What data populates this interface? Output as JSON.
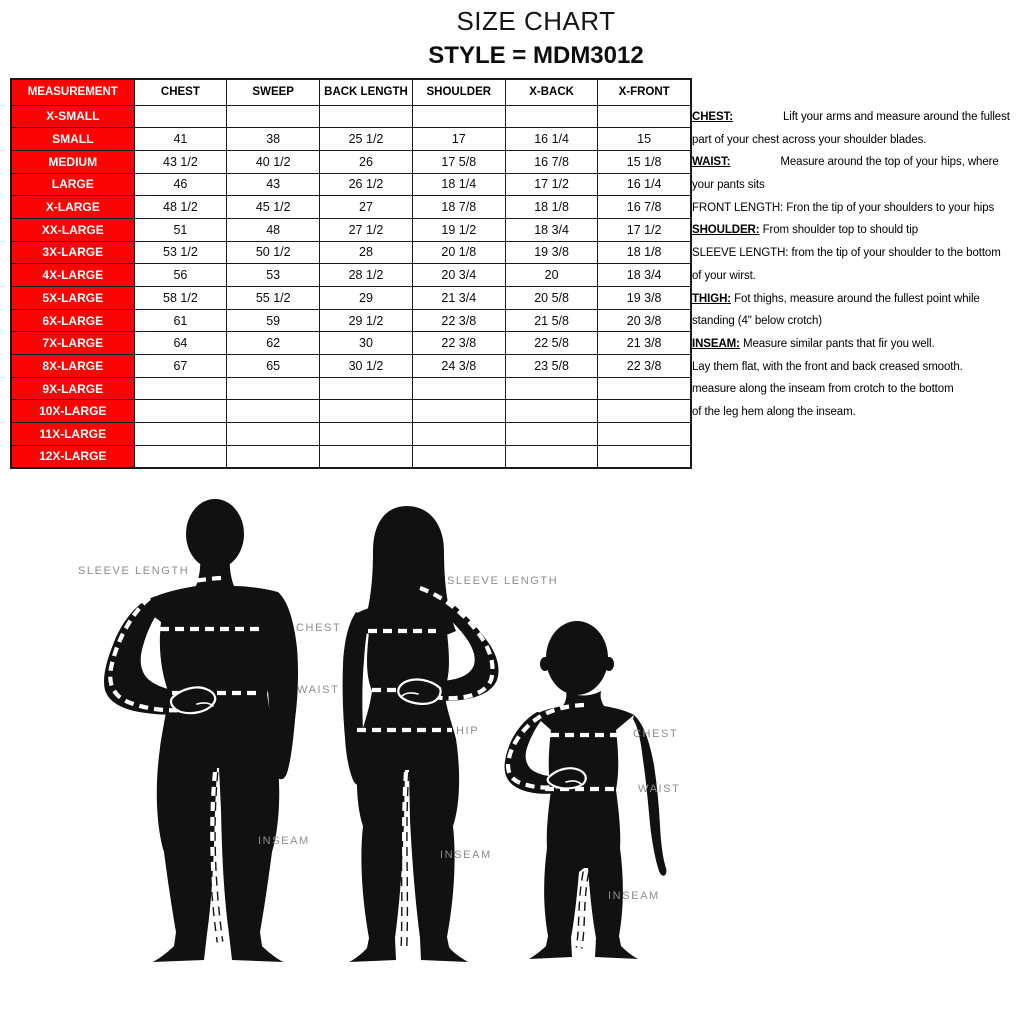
{
  "header": {
    "title": "SIZE CHART",
    "style_line": "STYLE = MDM3012"
  },
  "table": {
    "columns": [
      "MEASUREMENT",
      "CHEST",
      "SWEEP",
      "BACK LENGTH",
      "SHOULDER",
      "X-BACK",
      "X-FRONT"
    ],
    "rows": [
      {
        "label": "X-SMALL",
        "values": [
          "",
          "",
          "",
          "",
          "",
          ""
        ]
      },
      {
        "label": "SMALL",
        "values": [
          "41",
          "38",
          "25 1/2",
          "17",
          "16 1/4",
          "15"
        ]
      },
      {
        "label": "MEDIUM",
        "values": [
          "43 1/2",
          "40 1/2",
          "26",
          "17 5/8",
          "16 7/8",
          "15 1/8"
        ]
      },
      {
        "label": "LARGE",
        "values": [
          "46",
          "43",
          "26 1/2",
          "18 1/4",
          "17 1/2",
          "16 1/4"
        ]
      },
      {
        "label": "X-LARGE",
        "values": [
          "48 1/2",
          "45 1/2",
          "27",
          "18 7/8",
          "18 1/8",
          "16 7/8"
        ]
      },
      {
        "label": "XX-LARGE",
        "values": [
          "51",
          "48",
          "27 1/2",
          "19 1/2",
          "18 3/4",
          "17 1/2"
        ]
      },
      {
        "label": "3X-LARGE",
        "values": [
          "53 1/2",
          "50 1/2",
          "28",
          "20 1/8",
          "19 3/8",
          "18 1/8"
        ]
      },
      {
        "label": "4X-LARGE",
        "values": [
          "56",
          "53",
          "28 1/2",
          "20 3/4",
          "20",
          "18 3/4"
        ]
      },
      {
        "label": "5X-LARGE",
        "values": [
          "58 1/2",
          "55 1/2",
          "29",
          "21 3/4",
          "20 5/8",
          "19 3/8"
        ]
      },
      {
        "label": "6X-LARGE",
        "values": [
          "61",
          "59",
          "29 1/2",
          "22 3/8",
          "21 5/8",
          "20 3/8"
        ]
      },
      {
        "label": "7X-LARGE",
        "values": [
          "64",
          "62",
          "30",
          "22 3/8",
          "22 5/8",
          "21 3/8"
        ]
      },
      {
        "label": "8X-LARGE",
        "values": [
          "67",
          "65",
          "30 1/2",
          "24 3/8",
          "23 5/8",
          "22 3/8"
        ]
      },
      {
        "label": "9X-LARGE",
        "values": [
          "",
          "",
          "",
          "",
          "",
          ""
        ]
      },
      {
        "label": "10X-LARGE",
        "values": [
          "",
          "",
          "",
          "",
          "",
          ""
        ]
      },
      {
        "label": "11X-LARGE",
        "values": [
          "",
          "",
          "",
          "",
          "",
          ""
        ]
      },
      {
        "label": "12X-LARGE",
        "values": [
          "",
          "",
          "",
          "",
          "",
          ""
        ]
      }
    ]
  },
  "instructions": {
    "lines": [
      {
        "label": "CHEST:",
        "underline": true,
        "tab": true,
        "text": "Lift your arms and measure around the fullest"
      },
      {
        "label": "",
        "underline": false,
        "tab": false,
        "text": "part of your chest across your shoulder blades."
      },
      {
        "label": "WAIST:",
        "underline": true,
        "tab": true,
        "text": "Measure around the top of  your hips, where"
      },
      {
        "label": "",
        "underline": false,
        "tab": false,
        "text": "your pants sits"
      },
      {
        "label": "FRONT LENGTH:",
        "underline": false,
        "tab": false,
        "text": "Fron the tip of your shoulders to your hips"
      },
      {
        "label": "SHOULDER:",
        "underline": true,
        "tab": false,
        "text": "From shoulder top to should tip"
      },
      {
        "label": "SLEEVE LENGTH:",
        "underline": false,
        "tab": false,
        "text": "from the tip of your shoulder to the bottom"
      },
      {
        "label": "",
        "underline": false,
        "tab": false,
        "text": "of your wirst."
      },
      {
        "label": "THIGH:",
        "underline": true,
        "tab": false,
        "text": "Fot thighs, measure around the fullest point while"
      },
      {
        "label": "",
        "underline": false,
        "tab": false,
        "text": "standing (4\" below crotch)"
      },
      {
        "label": "INSEAM:",
        "underline": true,
        "tab": false,
        "text": "Measure similar pants that fir you well."
      },
      {
        "label": "",
        "underline": false,
        "tab": false,
        "text": "Lay them flat, with the front and back creased smooth."
      },
      {
        "label": "",
        "underline": false,
        "tab": false,
        "text": "measure along the inseam from crotch to the bottom"
      },
      {
        "label": "",
        "underline": false,
        "tab": false,
        "text": "of the leg hem along the inseam."
      }
    ]
  },
  "figure": {
    "labels": {
      "man_sleeve": "SLEEVE LENGTH",
      "man_chest": "CHEST",
      "man_waist": "WAIST",
      "man_inseam": "INSEAM",
      "woman_sleeve": "SLEEVE LENGTH",
      "woman_hip": "HIP",
      "woman_inseam": "INSEAM",
      "child_chest": "CHEST",
      "child_waist": "WAIST",
      "child_inseam": "INSEAM"
    }
  },
  "colors": {
    "accent_red": "#fa0404",
    "label_gray": "#8d8d8d",
    "silhouette": "#111111",
    "dash_white": "#ffffff"
  }
}
